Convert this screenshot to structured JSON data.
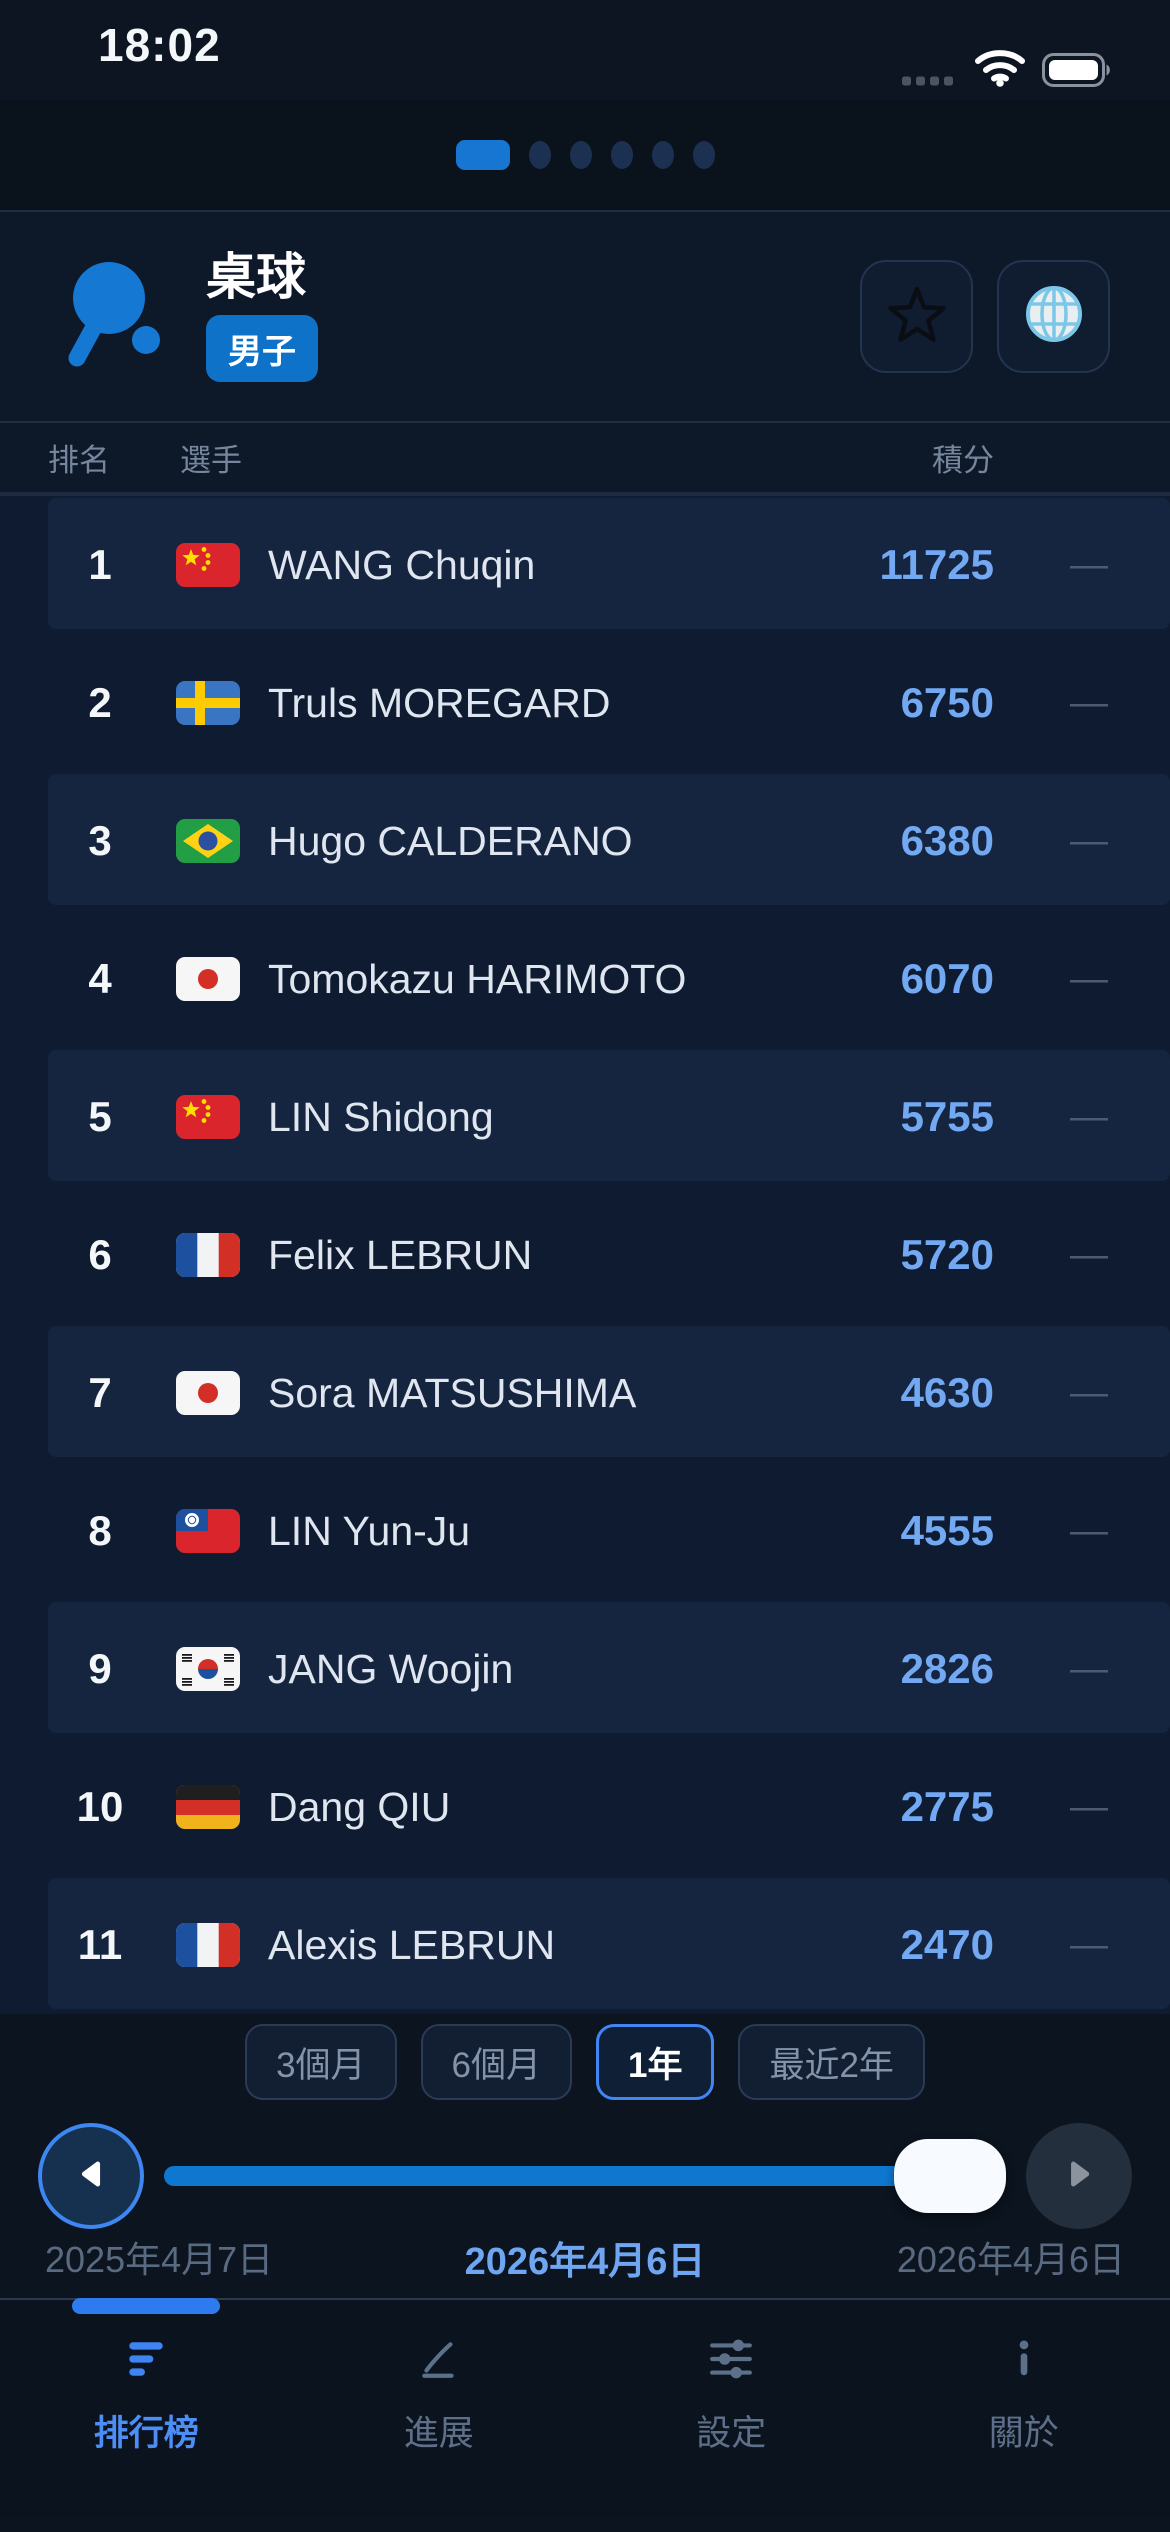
{
  "status_bar": {
    "time": "18:02",
    "icons": [
      "cellular-dots-icon",
      "wifi-icon",
      "battery-icon"
    ]
  },
  "page_dots": {
    "total": 6,
    "active_index": 0
  },
  "header": {
    "title": "桌球",
    "badge": "男子",
    "sport_icon": "table-tennis-paddle-icon",
    "actions": [
      {
        "name": "favorite-button",
        "icon": "star-icon"
      },
      {
        "name": "language-button",
        "icon": "globe-icon"
      }
    ]
  },
  "table": {
    "columns": {
      "rank": "排名",
      "player": "選手",
      "points": "積分",
      "change": ""
    },
    "rows": [
      {
        "rank": "1",
        "country_code": "CN",
        "name": "WANG Chuqin",
        "points": "11725",
        "change": "—"
      },
      {
        "rank": "2",
        "country_code": "SE",
        "name": "Truls MOREGARD",
        "points": "6750",
        "change": "—"
      },
      {
        "rank": "3",
        "country_code": "BR",
        "name": "Hugo CALDERANO",
        "points": "6380",
        "change": "—"
      },
      {
        "rank": "4",
        "country_code": "JP",
        "name": "Tomokazu HARIMOTO",
        "points": "6070",
        "change": "—"
      },
      {
        "rank": "5",
        "country_code": "CN",
        "name": "LIN Shidong",
        "points": "5755",
        "change": "—"
      },
      {
        "rank": "6",
        "country_code": "FR",
        "name": "Felix LEBRUN",
        "points": "5720",
        "change": "—"
      },
      {
        "rank": "7",
        "country_code": "JP",
        "name": "Sora MATSUSHIMA",
        "points": "4630",
        "change": "—"
      },
      {
        "rank": "8",
        "country_code": "TW",
        "name": "LIN Yun-Ju",
        "points": "4555",
        "change": "—"
      },
      {
        "rank": "9",
        "country_code": "KR",
        "name": "JANG Woojin",
        "points": "2826",
        "change": "—"
      },
      {
        "rank": "10",
        "country_code": "DE",
        "name": "Dang QIU",
        "points": "2775",
        "change": "—"
      },
      {
        "rank": "11",
        "country_code": "FR",
        "name": "Alexis LEBRUN",
        "points": "2470",
        "change": "—"
      }
    ]
  },
  "period_filters": {
    "options": [
      "3個月",
      "6個月",
      "1年",
      "最近2年"
    ],
    "selected": "1年"
  },
  "timeline": {
    "start_date": "2025年4月7日",
    "current_date": "2026年4月6日",
    "end_date": "2026年4月6日",
    "progress_percent": 100,
    "prev_icon": "previous-arrow-icon",
    "next_icon": "next-arrow-icon"
  },
  "tab_bar": {
    "tabs": [
      {
        "label": "排行榜",
        "icon": "ranking-list-icon",
        "active": true
      },
      {
        "label": "進展",
        "icon": "progress-chart-icon",
        "active": false
      },
      {
        "label": "設定",
        "icon": "settings-sliders-icon",
        "active": false
      },
      {
        "label": "關於",
        "icon": "info-icon",
        "active": false
      }
    ]
  },
  "colors": {
    "accent_blue": "#1478D2",
    "points_blue": "#73A9F3",
    "active_tab_blue": "#4D8DF6",
    "row_light": "#16253F",
    "row_dark": "#0E1B30",
    "badge_blue": "#0E72C8"
  }
}
